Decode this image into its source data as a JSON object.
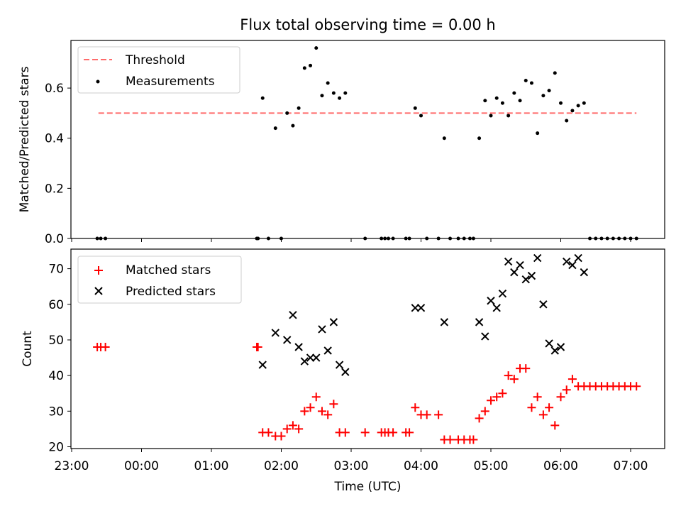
{
  "chart_data": [
    {
      "type": "scatter",
      "title": "Flux total observing time = 0.00 h",
      "xlabel": "",
      "ylabel": "Matched/Predicted stars",
      "ylim": [
        0,
        0.79
      ],
      "yticks": [
        0.0,
        0.2,
        0.4,
        0.6
      ],
      "ytick_labels": [
        "0.0",
        "0.2",
        "0.4",
        "0.6"
      ],
      "grid": false,
      "legend_position": "upper-left",
      "legend": [
        "Threshold",
        "Measurements"
      ],
      "colors": {
        "threshold": "#ff6b6b",
        "measurements": "#000000"
      },
      "threshold": {
        "name": "Threshold",
        "y": 0.5,
        "x_start": "23:23",
        "x_end": "07:05"
      },
      "series": [
        {
          "name": "Measurements",
          "points": [
            [
              "23:22",
              0.0
            ],
            [
              "23:25",
              0.0
            ],
            [
              "23:29",
              0.0
            ],
            [
              "01:39",
              0.0
            ],
            [
              "01:40",
              0.0
            ],
            [
              "01:44",
              0.56
            ],
            [
              "01:49",
              0.0
            ],
            [
              "01:55",
              0.44
            ],
            [
              "02:00",
              0.0
            ],
            [
              "02:05",
              0.5
            ],
            [
              "02:10",
              0.45
            ],
            [
              "02:15",
              0.52
            ],
            [
              "02:20",
              0.68
            ],
            [
              "02:25",
              0.69
            ],
            [
              "02:30",
              0.76
            ],
            [
              "02:35",
              0.57
            ],
            [
              "02:40",
              0.62
            ],
            [
              "02:45",
              0.58
            ],
            [
              "02:50",
              0.56
            ],
            [
              "02:55",
              0.58
            ],
            [
              "03:12",
              0.0
            ],
            [
              "03:26",
              0.0
            ],
            [
              "03:29",
              0.0
            ],
            [
              "03:32",
              0.0
            ],
            [
              "03:36",
              0.0
            ],
            [
              "03:47",
              0.0
            ],
            [
              "03:50",
              0.0
            ],
            [
              "03:55",
              0.52
            ],
            [
              "04:00",
              0.49
            ],
            [
              "04:05",
              0.0
            ],
            [
              "04:15",
              0.0
            ],
            [
              "04:20",
              0.4
            ],
            [
              "04:25",
              0.0
            ],
            [
              "04:32",
              0.0
            ],
            [
              "04:37",
              0.0
            ],
            [
              "04:42",
              0.0
            ],
            [
              "04:45",
              0.0
            ],
            [
              "04:50",
              0.4
            ],
            [
              "04:55",
              0.55
            ],
            [
              "05:00",
              0.49
            ],
            [
              "05:05",
              0.56
            ],
            [
              "05:10",
              0.54
            ],
            [
              "05:15",
              0.49
            ],
            [
              "05:20",
              0.58
            ],
            [
              "05:25",
              0.55
            ],
            [
              "05:30",
              0.63
            ],
            [
              "05:35",
              0.62
            ],
            [
              "05:40",
              0.42
            ],
            [
              "05:45",
              0.57
            ],
            [
              "05:50",
              0.59
            ],
            [
              "05:55",
              0.66
            ],
            [
              "06:00",
              0.54
            ],
            [
              "06:05",
              0.47
            ],
            [
              "06:10",
              0.51
            ],
            [
              "06:15",
              0.53
            ],
            [
              "06:20",
              0.54
            ],
            [
              "06:25",
              0.0
            ],
            [
              "06:30",
              0.0
            ],
            [
              "06:35",
              0.0
            ],
            [
              "06:40",
              0.0
            ],
            [
              "06:45",
              0.0
            ],
            [
              "06:50",
              0.0
            ],
            [
              "06:55",
              0.0
            ],
            [
              "07:00",
              0.0
            ],
            [
              "07:05",
              0.0
            ]
          ]
        }
      ]
    },
    {
      "type": "scatter",
      "title": "",
      "xlabel": "Time (UTC)",
      "ylabel": "Count",
      "ylim": [
        19.5,
        75.5
      ],
      "yticks": [
        20,
        30,
        40,
        50,
        60,
        70
      ],
      "ytick_labels": [
        "20",
        "30",
        "40",
        "50",
        "60",
        "70"
      ],
      "xticks": [
        "23:00",
        "00:00",
        "01:00",
        "02:00",
        "03:00",
        "04:00",
        "05:00",
        "06:00",
        "07:00"
      ],
      "grid": false,
      "legend_position": "upper-left",
      "legend": [
        "Matched stars",
        "Predicted stars"
      ],
      "colors": {
        "matched": "#ff0000",
        "predicted": "#000000"
      },
      "series": [
        {
          "name": "Matched stars",
          "points": [
            [
              "23:22",
              48
            ],
            [
              "23:25",
              48
            ],
            [
              "23:29",
              48
            ],
            [
              "01:39",
              48
            ],
            [
              "01:40",
              48
            ],
            [
              "01:44",
              24
            ],
            [
              "01:49",
              24
            ],
            [
              "01:55",
              23
            ],
            [
              "02:00",
              23
            ],
            [
              "02:05",
              25
            ],
            [
              "02:10",
              26
            ],
            [
              "02:15",
              25
            ],
            [
              "02:20",
              30
            ],
            [
              "02:25",
              31
            ],
            [
              "02:30",
              34
            ],
            [
              "02:35",
              30
            ],
            [
              "02:40",
              29
            ],
            [
              "02:45",
              32
            ],
            [
              "02:50",
              24
            ],
            [
              "02:55",
              24
            ],
            [
              "03:12",
              24
            ],
            [
              "03:26",
              24
            ],
            [
              "03:29",
              24
            ],
            [
              "03:32",
              24
            ],
            [
              "03:36",
              24
            ],
            [
              "03:47",
              24
            ],
            [
              "03:50",
              24
            ],
            [
              "03:55",
              31
            ],
            [
              "04:00",
              29
            ],
            [
              "04:05",
              29
            ],
            [
              "04:15",
              29
            ],
            [
              "04:20",
              22
            ],
            [
              "04:25",
              22
            ],
            [
              "04:32",
              22
            ],
            [
              "04:37",
              22
            ],
            [
              "04:42",
              22
            ],
            [
              "04:45",
              22
            ],
            [
              "04:50",
              28
            ],
            [
              "04:55",
              30
            ],
            [
              "05:00",
              33
            ],
            [
              "05:05",
              34
            ],
            [
              "05:10",
              35
            ],
            [
              "05:15",
              40
            ],
            [
              "05:20",
              39
            ],
            [
              "05:25",
              42
            ],
            [
              "05:30",
              42
            ],
            [
              "05:35",
              31
            ],
            [
              "05:40",
              34
            ],
            [
              "05:45",
              29
            ],
            [
              "05:50",
              31
            ],
            [
              "05:55",
              26
            ],
            [
              "06:00",
              34
            ],
            [
              "06:05",
              36
            ],
            [
              "06:10",
              39
            ],
            [
              "06:15",
              37
            ],
            [
              "06:20",
              37
            ],
            [
              "06:25",
              37
            ],
            [
              "06:30",
              37
            ],
            [
              "06:35",
              37
            ],
            [
              "06:40",
              37
            ],
            [
              "06:45",
              37
            ],
            [
              "06:50",
              37
            ],
            [
              "06:55",
              37
            ],
            [
              "07:00",
              37
            ],
            [
              "07:05",
              37
            ]
          ]
        },
        {
          "name": "Predicted stars",
          "points": [
            [
              "01:44",
              43
            ],
            [
              "01:55",
              52
            ],
            [
              "02:05",
              50
            ],
            [
              "02:10",
              57
            ],
            [
              "02:15",
              48
            ],
            [
              "02:20",
              44
            ],
            [
              "02:25",
              45
            ],
            [
              "02:30",
              45
            ],
            [
              "02:35",
              53
            ],
            [
              "02:40",
              47
            ],
            [
              "02:45",
              55
            ],
            [
              "02:50",
              43
            ],
            [
              "02:55",
              41
            ],
            [
              "03:55",
              59
            ],
            [
              "04:00",
              59
            ],
            [
              "04:20",
              55
            ],
            [
              "04:50",
              55
            ],
            [
              "04:55",
              51
            ],
            [
              "05:00",
              61
            ],
            [
              "05:05",
              59
            ],
            [
              "05:10",
              63
            ],
            [
              "05:15",
              72
            ],
            [
              "05:20",
              69
            ],
            [
              "05:25",
              71
            ],
            [
              "05:30",
              67
            ],
            [
              "05:35",
              68
            ],
            [
              "05:40",
              73
            ],
            [
              "05:45",
              60
            ],
            [
              "05:50",
              49
            ],
            [
              "05:55",
              47
            ],
            [
              "06:00",
              48
            ],
            [
              "06:05",
              72
            ],
            [
              "06:10",
              71
            ],
            [
              "06:15",
              73
            ],
            [
              "06:20",
              69
            ]
          ]
        }
      ]
    }
  ]
}
